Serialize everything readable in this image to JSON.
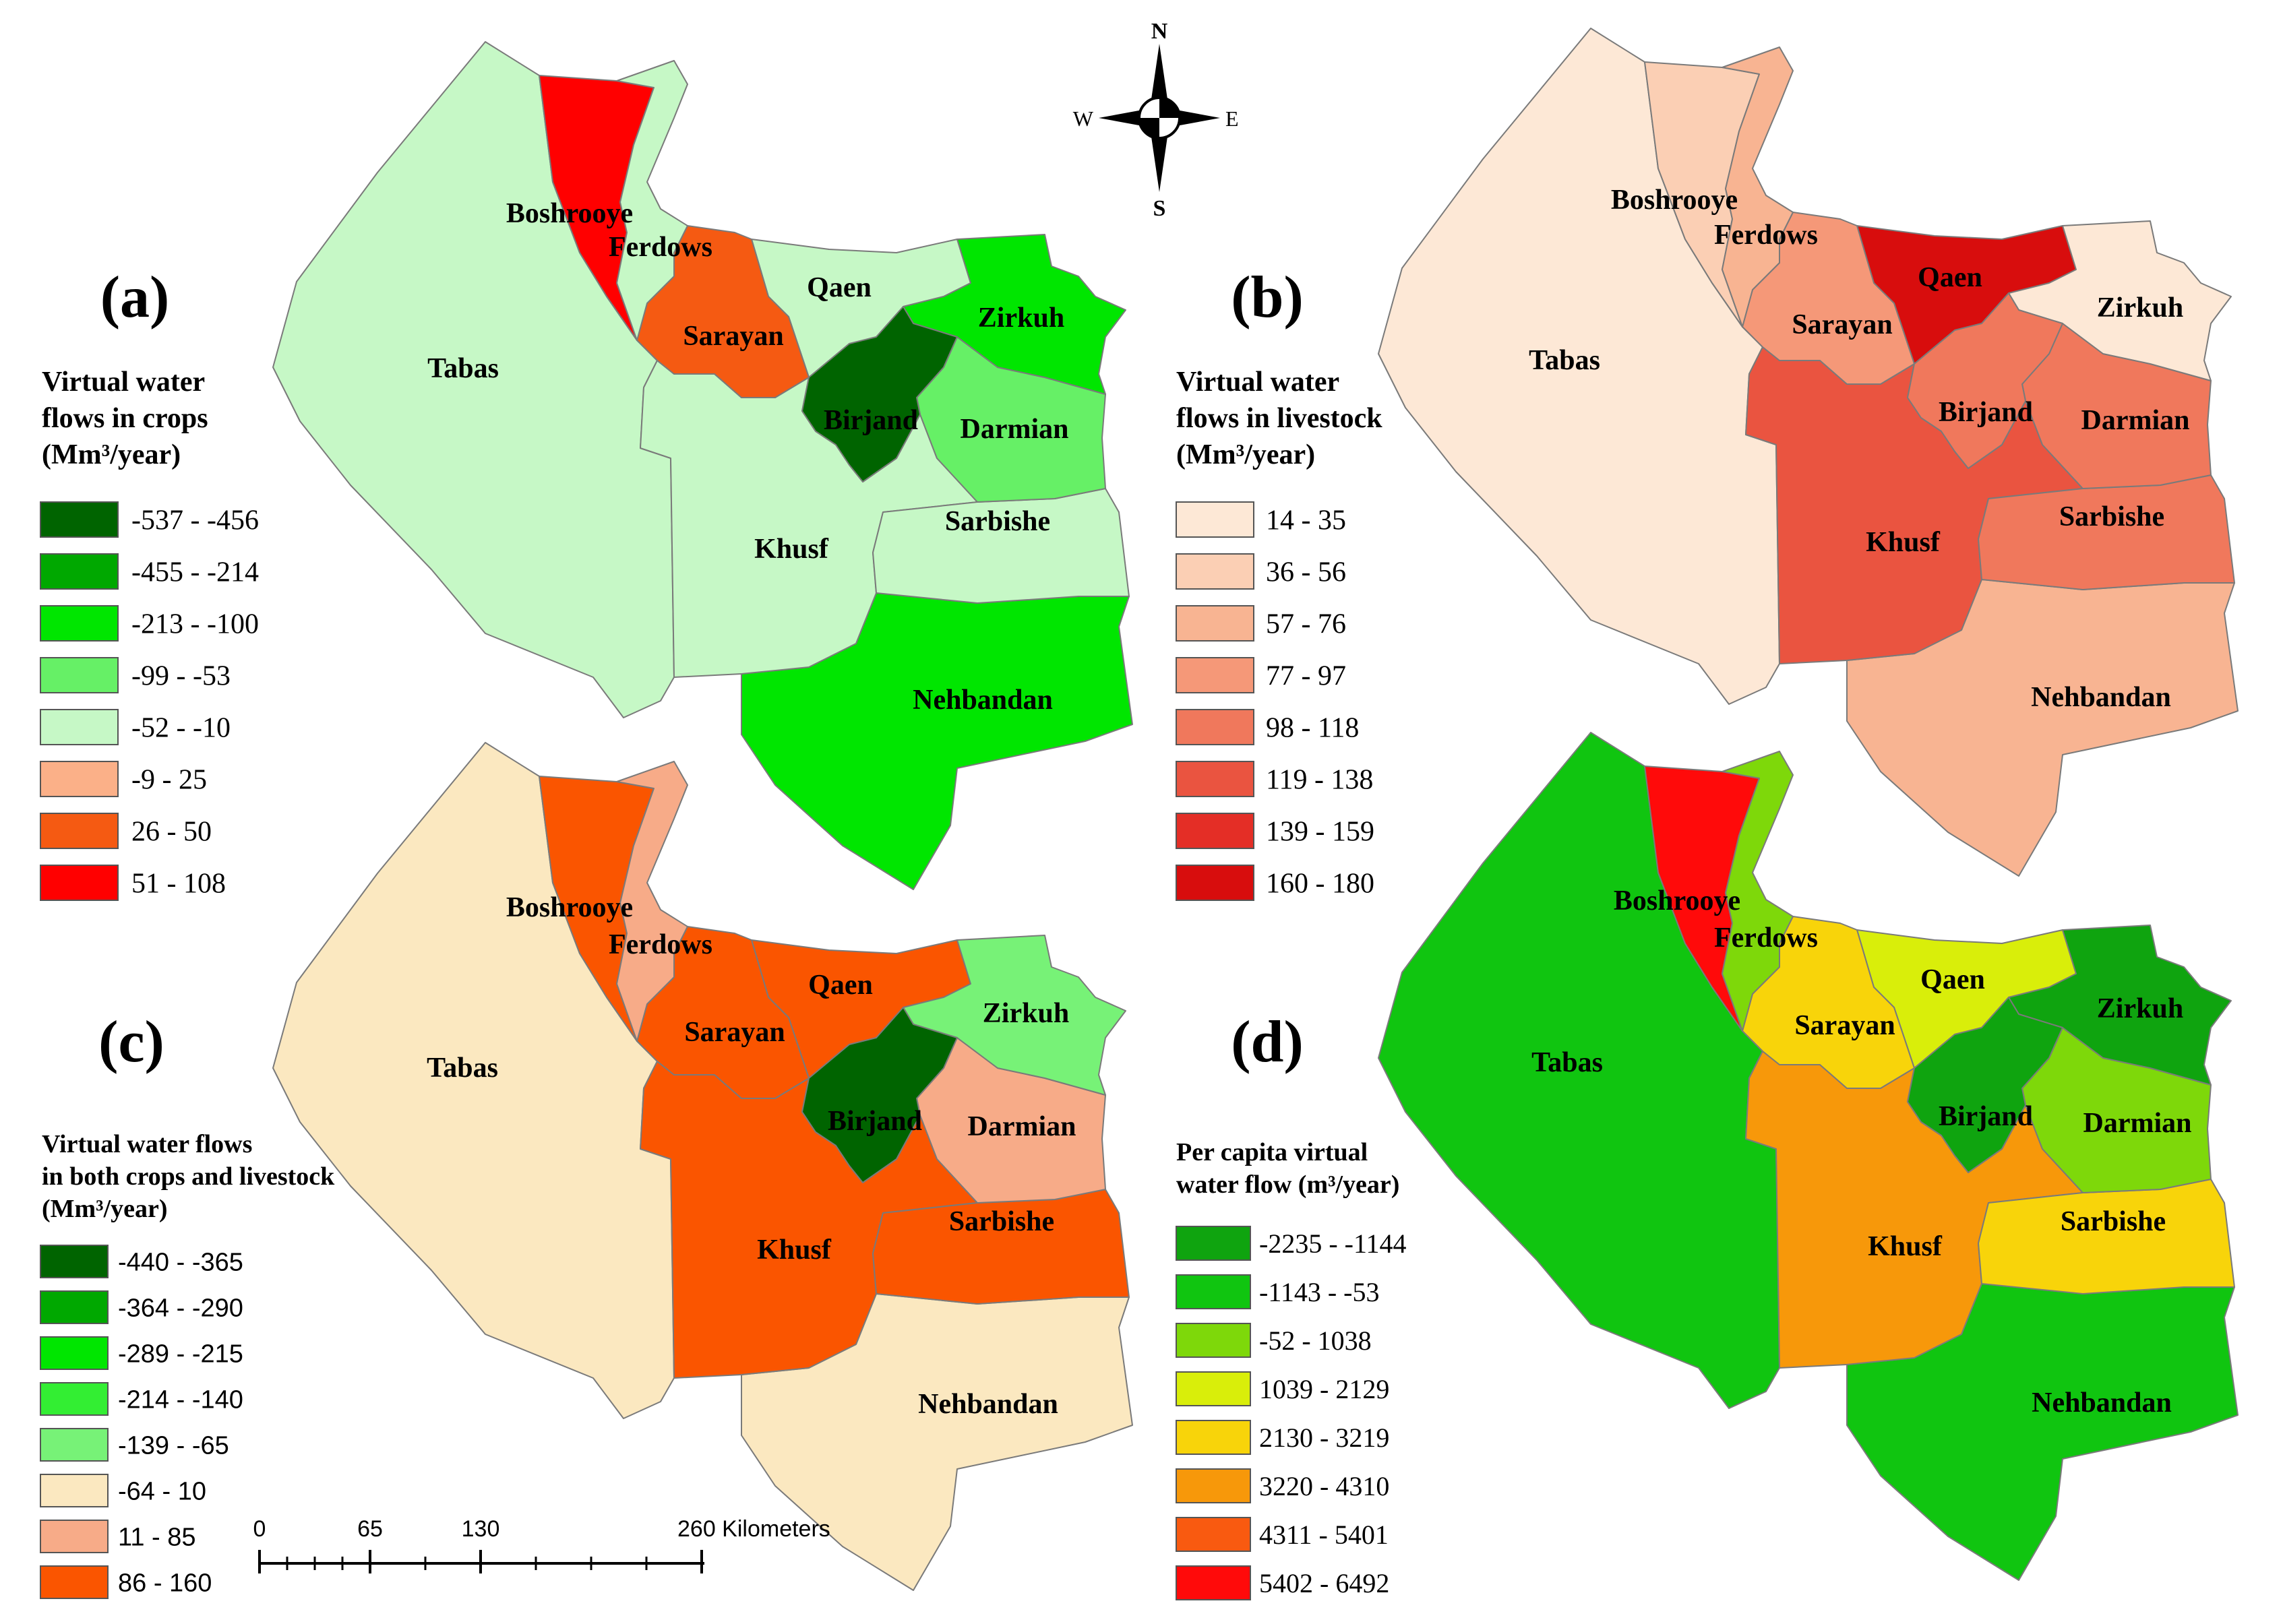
{
  "north_arrow": {
    "n": "N",
    "s": "S",
    "e": "E",
    "w": "W"
  },
  "scale_bar": {
    "ticks": [
      "0",
      "65",
      "130",
      "260 Kilometers"
    ]
  },
  "district_names": {
    "boshrooye": "Boshrooye",
    "ferdows": "Ferdows",
    "tabas": "Tabas",
    "sarayan": "Sarayan",
    "qaen": "Qaen",
    "zirkuh": "Zirkuh",
    "birjand": "Birjand",
    "darmian": "Darmian",
    "khusf": "Khusf",
    "sarbishe": "Sarbishe",
    "nehbandan": "Nehbandan"
  },
  "panels": [
    {
      "id": "a",
      "label": "(a)",
      "legend_title": [
        "Virtual water",
        "flows in crops",
        "(Mm³/year)"
      ],
      "classes": [
        {
          "range": "-537 - -456",
          "color": "#006400"
        },
        {
          "range": "-455 - -214",
          "color": "#00a800"
        },
        {
          "range": "-213 - -100",
          "color": "#00e600"
        },
        {
          "range": "-99 - -53",
          "color": "#66f066"
        },
        {
          "range": "-52 - -10",
          "color": "#c6f8c6"
        },
        {
          "range": "-9 - 25",
          "color": "#fbb088"
        },
        {
          "range": "26 - 50",
          "color": "#f55a12"
        },
        {
          "range": "51 - 108",
          "color": "#ff0000"
        }
      ],
      "district_class": {
        "tabas": 4,
        "boshrooye": 7,
        "ferdows": 4,
        "sarayan": 6,
        "qaen": 4,
        "zirkuh": 2,
        "birjand": 0,
        "darmian": 3,
        "khusf": 4,
        "sarbishe": 4,
        "nehbandan": 2
      }
    },
    {
      "id": "b",
      "label": "(b)",
      "legend_title": [
        "Virtual water",
        "flows in livestock",
        "(Mm³/year)"
      ],
      "classes": [
        {
          "range": "14 - 35",
          "color": "#fde8d6"
        },
        {
          "range": "36 - 56",
          "color": "#fbcfb4"
        },
        {
          "range": "57 - 76",
          "color": "#f8b492"
        },
        {
          "range": "77 - 97",
          "color": "#f59878"
        },
        {
          "range": "98 - 118",
          "color": "#f0785c"
        },
        {
          "range": "119 - 138",
          "color": "#ea5440"
        },
        {
          "range": "139 - 159",
          "color": "#e42e26"
        },
        {
          "range": "160 - 180",
          "color": "#d80d0d"
        }
      ],
      "district_class": {
        "tabas": 0,
        "boshrooye": 1,
        "ferdows": 2,
        "sarayan": 3,
        "qaen": 7,
        "zirkuh": 0,
        "birjand": 4,
        "darmian": 4,
        "khusf": 5,
        "sarbishe": 4,
        "nehbandan": 2
      }
    },
    {
      "id": "c",
      "label": "(c)",
      "legend_title": [
        "Virtual water flows",
        "in both crops and livestock",
        "(Mm³/year)"
      ],
      "classes": [
        {
          "range": "-440 - -365",
          "color": "#006400"
        },
        {
          "range": "-364 - -290",
          "color": "#00a800"
        },
        {
          "range": "-289 - -215",
          "color": "#00e600"
        },
        {
          "range": "-214 - -140",
          "color": "#33ee33"
        },
        {
          "range": "-139 - -65",
          "color": "#77f277"
        },
        {
          "range": "-64 - 10",
          "color": "#fbe8c0"
        },
        {
          "range": "11 - 85",
          "color": "#f7ab88"
        },
        {
          "range": "86 - 160",
          "color": "#fa5500"
        }
      ],
      "district_class": {
        "tabas": 5,
        "boshrooye": 7,
        "ferdows": 6,
        "sarayan": 7,
        "qaen": 7,
        "zirkuh": 4,
        "birjand": 0,
        "darmian": 6,
        "khusf": 7,
        "sarbishe": 7,
        "nehbandan": 5
      }
    },
    {
      "id": "d",
      "label": "(d)",
      "legend_title": [
        "Per capita virtual",
        "water flow (m³/year)"
      ],
      "classes": [
        {
          "range": "-2235 - -1144",
          "color": "#0fa40f"
        },
        {
          "range": "-1143 - -53",
          "color": "#10c510"
        },
        {
          "range": "-52 - 1038",
          "color": "#7ed80a"
        },
        {
          "range": "1039 - 2129",
          "color": "#d9ee0a"
        },
        {
          "range": "2130 - 3219",
          "color": "#f8d40a"
        },
        {
          "range": "3220 - 4310",
          "color": "#f7980a"
        },
        {
          "range": "4311 - 5401",
          "color": "#f95a10"
        },
        {
          "range": "5402 - 6492",
          "color": "#ff0a0a"
        }
      ],
      "district_class": {
        "tabas": 1,
        "boshrooye": 7,
        "ferdows": 2,
        "sarayan": 4,
        "qaen": 3,
        "zirkuh": 0,
        "birjand": 0,
        "darmian": 2,
        "khusf": 5,
        "sarbishe": 4,
        "nehbandan": 1
      }
    }
  ]
}
